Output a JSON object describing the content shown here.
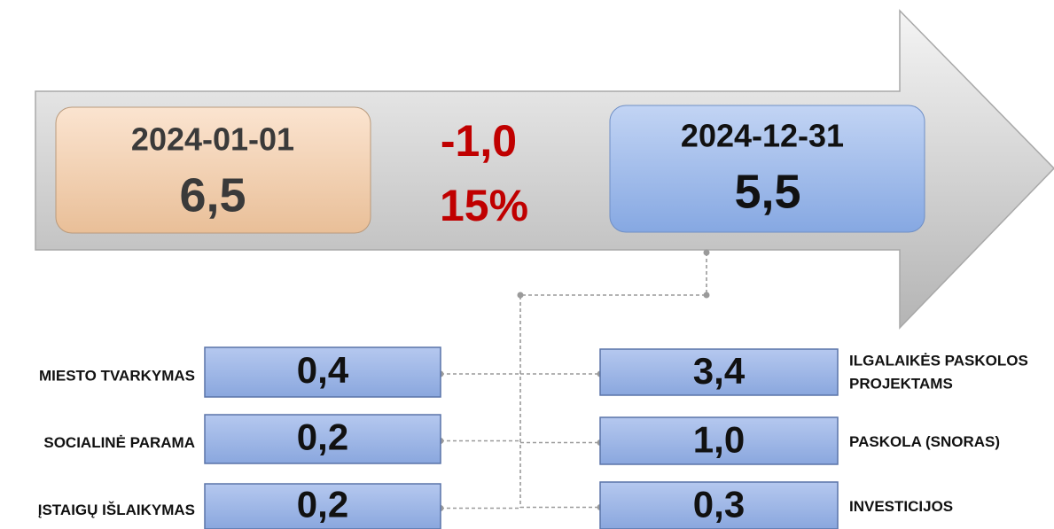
{
  "start": {
    "date": "2024-01-01",
    "value": "6,5"
  },
  "change": {
    "amount": "-1,0",
    "percent": "15%"
  },
  "end": {
    "date": "2024-12-31",
    "value": "5,5"
  },
  "left_items": [
    {
      "label": "MIESTO TVARKYMAS",
      "value": "0,4"
    },
    {
      "label": "SOCIALINĖ PARAMA",
      "value": "0,2"
    },
    {
      "label": "ĮSTAIGŲ IŠLAIKYMAS",
      "value": "0,2"
    }
  ],
  "right_items": [
    {
      "label": "ILGALAIKĖS PASKOLOS",
      "label_line2": "PROJEKTAMS",
      "value": "3,4"
    },
    {
      "label": "PASKOLA (SNORAS)",
      "value": "1,0"
    },
    {
      "label": "INVESTICIJOS",
      "value": "0,3"
    }
  ]
}
